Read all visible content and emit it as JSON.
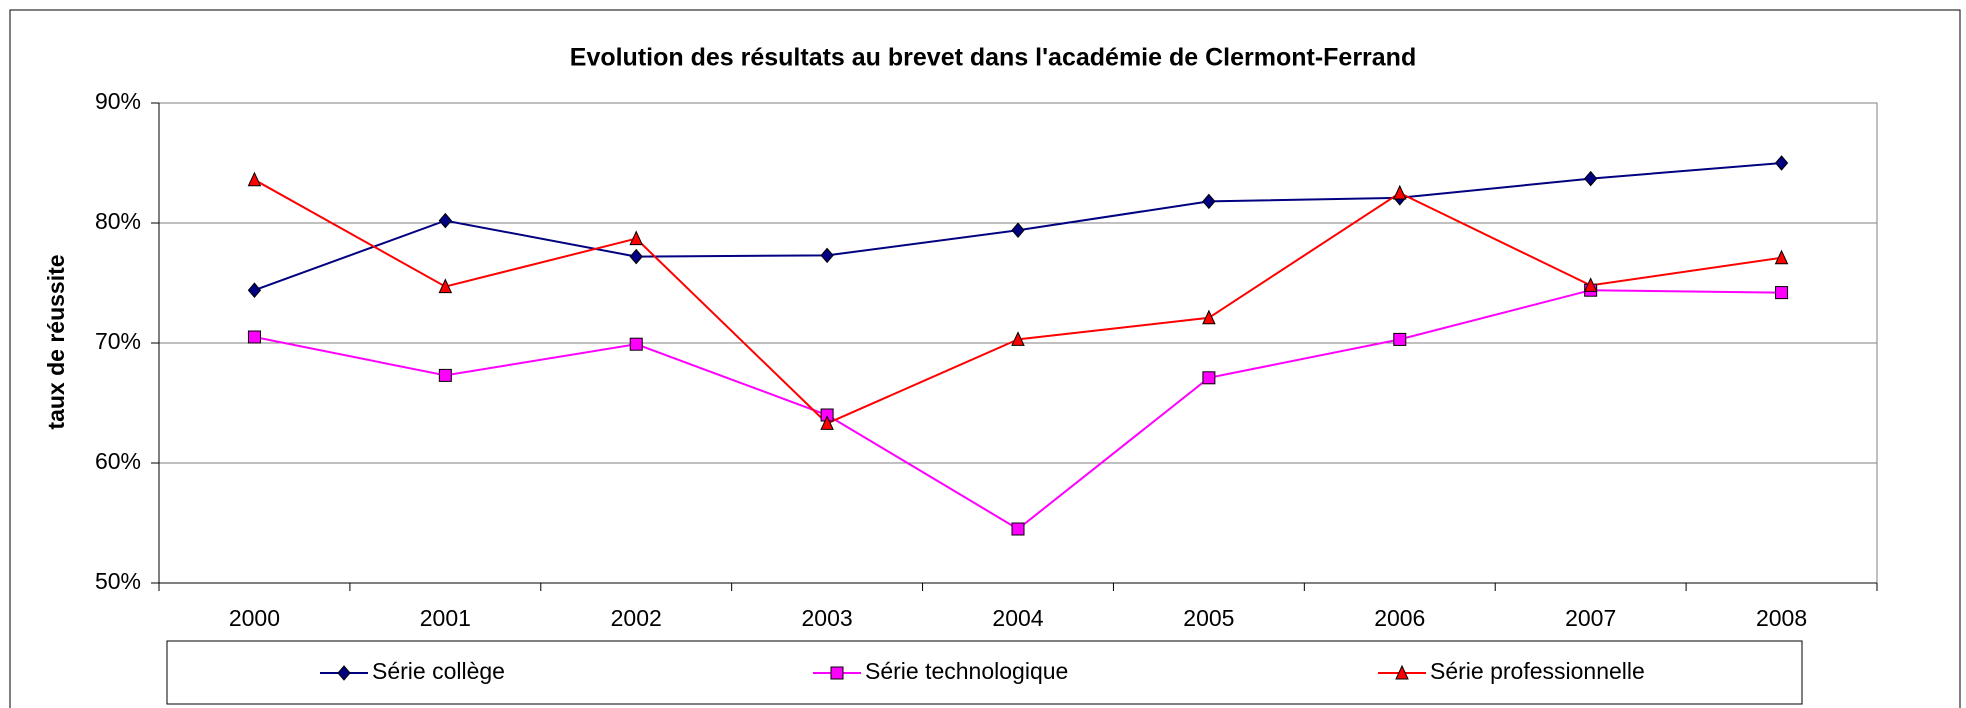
{
  "chart_data": {
    "type": "line",
    "title": "Evolution des résultats au brevet dans l'académie de Clermont-Ferrand",
    "y_label": "taux de réussite",
    "categories": [
      "2000",
      "2001",
      "2002",
      "2003",
      "2004",
      "2005",
      "2006",
      "2007",
      "2008"
    ],
    "series": [
      {
        "name": "Série collège",
        "color": "#000080",
        "marker": "diamond",
        "values": [
          74.4,
          80.2,
          77.2,
          77.3,
          79.4,
          81.8,
          82.1,
          83.7,
          85.0
        ]
      },
      {
        "name": "Série technologique",
        "color": "#ff00ff",
        "marker": "square",
        "values": [
          70.5,
          67.3,
          69.9,
          64.0,
          54.5,
          67.1,
          70.3,
          74.4,
          74.2
        ]
      },
      {
        "name": "Série professionnelle",
        "color": "#ff0000",
        "marker": "triangle",
        "values": [
          83.6,
          74.7,
          78.7,
          63.3,
          70.3,
          72.1,
          82.5,
          74.8,
          77.1
        ]
      }
    ],
    "ylim": [
      50,
      90
    ],
    "yticks": [
      {
        "value": 50,
        "label": "50%"
      },
      {
        "value": 60,
        "label": "60%"
      },
      {
        "value": 70,
        "label": "70%"
      },
      {
        "value": 80,
        "label": "80%"
      },
      {
        "value": 90,
        "label": "90%"
      }
    ],
    "grid": true,
    "legend": "bottom"
  }
}
